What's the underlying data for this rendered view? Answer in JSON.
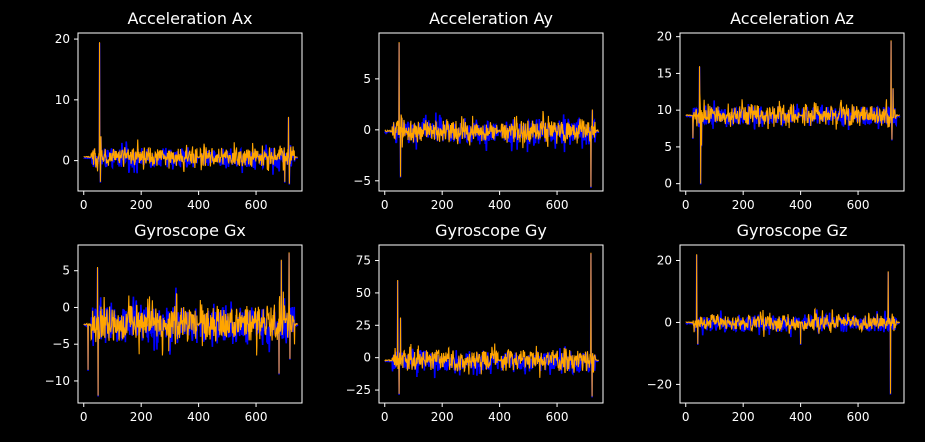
{
  "figure": {
    "background": "#000000",
    "foreground": "#ffffff"
  },
  "chart_data": [
    {
      "type": "line",
      "title": "Acceleration Ax",
      "xlim": [
        -20,
        760
      ],
      "ylim": [
        -5,
        21
      ],
      "xticks": [
        0,
        200,
        400,
        600
      ],
      "yticks": [
        0,
        10,
        20
      ],
      "grid": false,
      "series": [
        {
          "color": "#0000ff",
          "baseline": 0.6,
          "active": 1.8,
          "quiet": 0.1,
          "spikes": [
            [
              55,
              19.5
            ],
            [
              58,
              -3.5
            ],
            [
              60,
              4.0
            ],
            [
              700,
              -3.5
            ],
            [
              713,
              7.2
            ],
            [
              716,
              -3.8
            ]
          ]
        },
        {
          "color": "#ffa500",
          "baseline": 0.6,
          "active": 1.8,
          "quiet": 0.1,
          "spikes": [
            [
              55,
              19.5
            ],
            [
              58,
              -3.5
            ],
            [
              60,
              4.0
            ],
            [
              700,
              -3.5
            ],
            [
              713,
              7.2
            ],
            [
              716,
              -3.8
            ]
          ]
        }
      ]
    },
    {
      "type": "line",
      "title": "Acceleration Ay",
      "xlim": [
        -20,
        760
      ],
      "ylim": [
        -6,
        9.5
      ],
      "xticks": [
        0,
        200,
        400,
        600
      ],
      "yticks": [
        -5,
        0,
        5
      ],
      "grid": false,
      "series": [
        {
          "color": "#0000ff",
          "baseline": -0.1,
          "active": 1.3,
          "quiet": 0.1,
          "spikes": [
            [
              50,
              8.6
            ],
            [
              55,
              -4.6
            ],
            [
              60,
              1.2
            ],
            [
              718,
              -5.6
            ],
            [
              723,
              2.0
            ]
          ]
        },
        {
          "color": "#ffa500",
          "baseline": -0.1,
          "active": 1.3,
          "quiet": 0.1,
          "spikes": [
            [
              50,
              8.6
            ],
            [
              55,
              -4.6
            ],
            [
              60,
              1.2
            ],
            [
              718,
              -5.6
            ],
            [
              723,
              2.0
            ]
          ]
        }
      ]
    },
    {
      "type": "line",
      "title": "Acceleration Az",
      "xlim": [
        -20,
        760
      ],
      "ylim": [
        -1,
        20.5
      ],
      "xticks": [
        0,
        200,
        400,
        600
      ],
      "yticks": [
        0,
        5,
        10,
        15,
        20
      ],
      "grid": false,
      "series": [
        {
          "color": "#0000ff",
          "baseline": 9.3,
          "active": 1.5,
          "quiet": 0.1,
          "spikes": [
            [
              25,
              6.2
            ],
            [
              48,
              16.0
            ],
            [
              52,
              0.0
            ],
            [
              55,
              5.2
            ],
            [
              715,
              19.5
            ],
            [
              718,
              6.0
            ],
            [
              722,
              13.0
            ]
          ]
        },
        {
          "color": "#ffa500",
          "baseline": 9.3,
          "active": 1.5,
          "quiet": 0.1,
          "spikes": [
            [
              25,
              6.2
            ],
            [
              48,
              16.0
            ],
            [
              52,
              0.0
            ],
            [
              55,
              5.2
            ],
            [
              715,
              19.5
            ],
            [
              718,
              6.0
            ],
            [
              722,
              13.0
            ]
          ]
        }
      ]
    },
    {
      "type": "line",
      "title": "Gyroscope Gx",
      "xlim": [
        -20,
        760
      ],
      "ylim": [
        -13,
        8.5
      ],
      "xticks": [
        0,
        200,
        400,
        600
      ],
      "yticks": [
        -10,
        -5,
        0,
        5
      ],
      "grid": false,
      "series": [
        {
          "color": "#0000ff",
          "baseline": -2.3,
          "active": 2.8,
          "quiet": 0.15,
          "spikes": [
            [
              15,
              -8.5
            ],
            [
              48,
              5.5
            ],
            [
              50,
              -12.0
            ],
            [
              680,
              -9.0
            ],
            [
              688,
              6.5
            ],
            [
              715,
              7.5
            ],
            [
              718,
              -7.0
            ]
          ]
        },
        {
          "color": "#ffa500",
          "baseline": -2.3,
          "active": 2.8,
          "quiet": 0.15,
          "spikes": [
            [
              15,
              -8.5
            ],
            [
              48,
              5.5
            ],
            [
              50,
              -12.0
            ],
            [
              680,
              -9.0
            ],
            [
              688,
              6.5
            ],
            [
              715,
              7.5
            ],
            [
              718,
              -7.0
            ]
          ]
        }
      ]
    },
    {
      "type": "line",
      "title": "Gyroscope Gy",
      "xlim": [
        -20,
        760
      ],
      "ylim": [
        -35,
        87
      ],
      "xticks": [
        0,
        200,
        400,
        600
      ],
      "yticks": [
        -25,
        0,
        25,
        50,
        75
      ],
      "grid": false,
      "series": [
        {
          "color": "#0000ff",
          "baseline": -2,
          "active": 9,
          "quiet": 0.5,
          "spikes": [
            [
              45,
              60.0
            ],
            [
              50,
              -28.0
            ],
            [
              55,
              31.0
            ],
            [
              718,
              81.0
            ],
            [
              722,
              -30.0
            ]
          ]
        },
        {
          "color": "#ffa500",
          "baseline": -2,
          "active": 9,
          "quiet": 0.5,
          "spikes": [
            [
              45,
              60.0
            ],
            [
              50,
              -28.0
            ],
            [
              55,
              31.0
            ],
            [
              718,
              81.0
            ],
            [
              722,
              -30.0
            ]
          ]
        }
      ]
    },
    {
      "type": "line",
      "title": "Gyroscope Gz",
      "xlim": [
        -20,
        760
      ],
      "ylim": [
        -26,
        25
      ],
      "xticks": [
        0,
        200,
        400,
        600
      ],
      "yticks": [
        -20,
        0,
        20
      ],
      "grid": false,
      "series": [
        {
          "color": "#0000ff",
          "baseline": 0,
          "active": 3,
          "quiet": 0.2,
          "spikes": [
            [
              38,
              22.0
            ],
            [
              42,
              -7.0
            ],
            [
              400,
              -7.0
            ],
            [
              705,
              16.5
            ],
            [
              713,
              -23.0
            ]
          ]
        },
        {
          "color": "#ffa500",
          "baseline": 0,
          "active": 3,
          "quiet": 0.2,
          "spikes": [
            [
              38,
              22.0
            ],
            [
              42,
              -7.0
            ],
            [
              400,
              -7.0
            ],
            [
              705,
              16.5
            ],
            [
              713,
              -23.0
            ]
          ]
        }
      ]
    }
  ]
}
